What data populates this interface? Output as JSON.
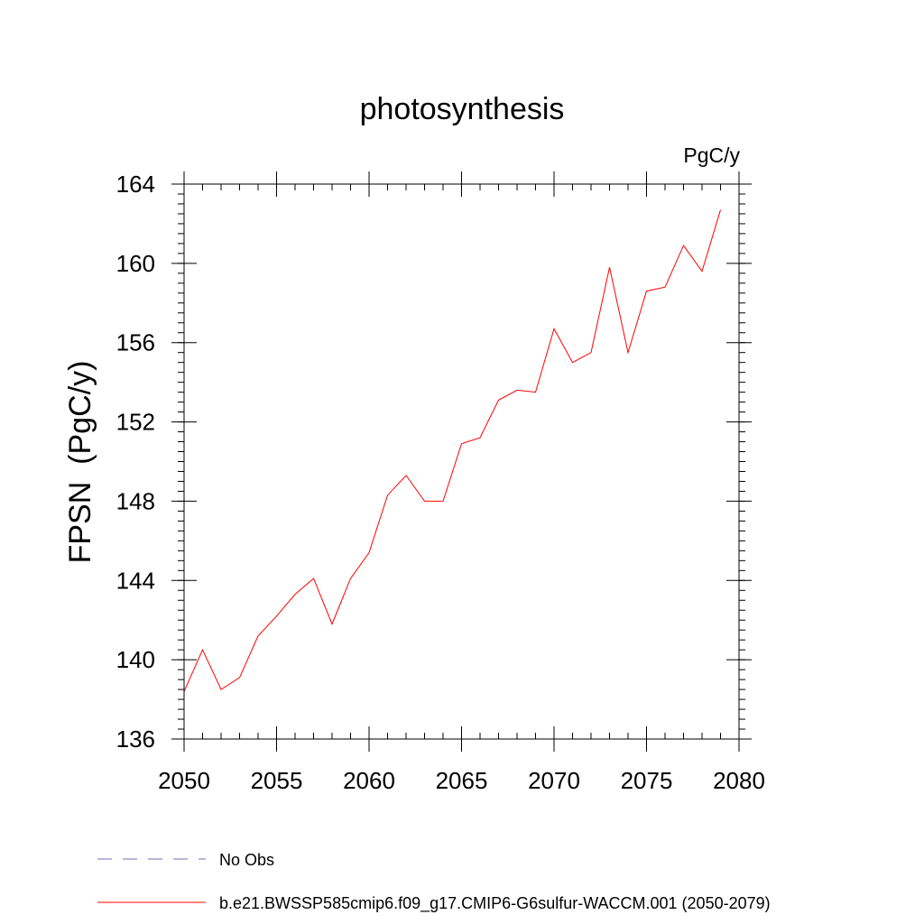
{
  "chart_data": {
    "type": "line",
    "title": "photosynthesis",
    "units_label": "PgC/y",
    "xlabel": "",
    "ylabel": "FPSN  (PgC/y)",
    "xlim": [
      2050,
      2080
    ],
    "ylim": [
      136,
      164
    ],
    "x_ticks": [
      2050,
      2055,
      2060,
      2065,
      2070,
      2075,
      2080
    ],
    "x_tick_labels": [
      "2050",
      "2055",
      "2060",
      "2065",
      "2070",
      "2075",
      "2080"
    ],
    "x_minor_step": 1,
    "y_ticks": [
      136,
      140,
      144,
      148,
      152,
      156,
      160,
      164
    ],
    "y_tick_labels": [
      "136",
      "140",
      "144",
      "148",
      "152",
      "156",
      "160",
      "164"
    ],
    "y_minor_step": 0.5,
    "grid": false,
    "legend_position": "bottom",
    "series": [
      {
        "name": "b.e21.BWSSP585cmip6.f09_g17.CMIP6-G6sulfur-WACCM.001 (2050-2079)",
        "color": "#ff0000",
        "dash": "solid",
        "x": [
          2050,
          2051,
          2052,
          2053,
          2054,
          2055,
          2056,
          2057,
          2058,
          2059,
          2060,
          2061,
          2062,
          2063,
          2064,
          2065,
          2066,
          2067,
          2068,
          2069,
          2070,
          2071,
          2072,
          2073,
          2074,
          2075,
          2076,
          2077,
          2078,
          2079
        ],
        "y": [
          138.4,
          140.5,
          138.5,
          139.1,
          141.2,
          142.2,
          143.3,
          144.1,
          141.8,
          144.1,
          145.4,
          148.3,
          149.3,
          148.0,
          148.0,
          150.9,
          151.2,
          153.1,
          153.6,
          153.5,
          156.7,
          155.0,
          155.5,
          159.8,
          155.5,
          158.6,
          158.8,
          160.9,
          159.6,
          162.7
        ]
      }
    ],
    "legend_entries": [
      {
        "label": "No Obs",
        "color": "#7b68b8",
        "dash": "dashed"
      },
      {
        "label": "b.e21.BWSSP585cmip6.f09_g17.CMIP6-G6sulfur-WACCM.001 (2050-2079)",
        "color": "#ff0000",
        "dash": "solid"
      }
    ]
  }
}
